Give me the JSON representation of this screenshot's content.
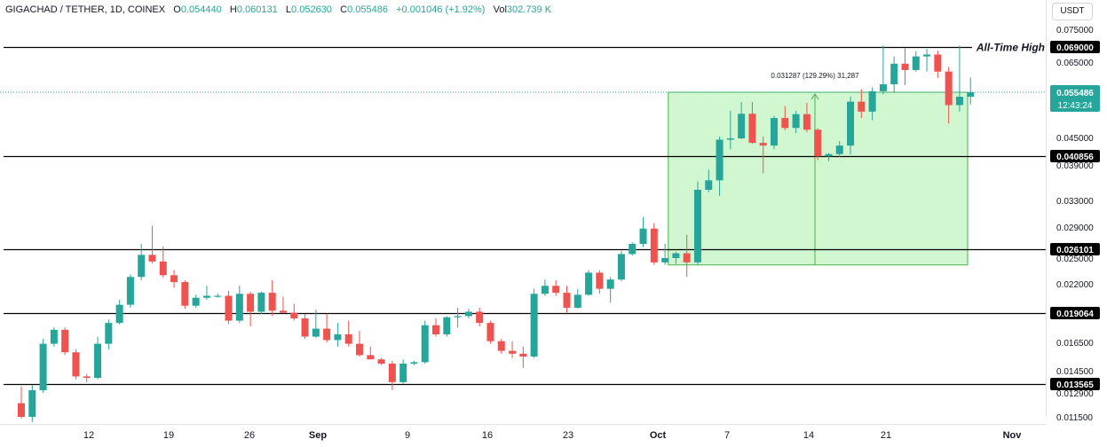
{
  "legend": {
    "symbol": "GIGACHAD / TETHER, 1D, COINEX",
    "open_label": "O",
    "open": "0.054440",
    "high_label": "H",
    "high": "0.060131",
    "low_label": "L",
    "low": "0.052630",
    "close_label": "C",
    "close": "0.055486",
    "change": "+0.001046 (+1.92%)",
    "volume_label": "Vol",
    "volume": "302.739 K"
  },
  "currency": "USDT",
  "colors": {
    "up": "#26a69a",
    "down": "#ef5350",
    "range_fill": "#b2f2b2",
    "range_line": "#4caf50",
    "price_tag": "#26a69a"
  },
  "chart_data": {
    "type": "candlestick",
    "x_ticks": [
      "12",
      "19",
      "26",
      "Sep",
      "9",
      "16",
      "23",
      "Oct",
      "7",
      "14",
      "21",
      "Nov"
    ],
    "y_ticks": [
      "0.075000",
      "0.065000",
      "0.045000",
      "0.039000",
      "0.033000",
      "0.029000",
      "0.025000",
      "0.022000",
      "0.016500",
      "0.014500",
      "0.012900",
      "0.011500"
    ],
    "levels": [
      {
        "value": 0.069,
        "label": "0.069000",
        "annotation": "All-Time High"
      },
      {
        "value": 0.040856,
        "label": "0.040856"
      },
      {
        "value": 0.026101,
        "label": "0.026101"
      },
      {
        "value": 0.019064,
        "label": "0.019064"
      },
      {
        "value": 0.013565,
        "label": "0.013565"
      }
    ],
    "current_price": {
      "label": "0.055486",
      "countdown": "12:43:24"
    },
    "measure": {
      "label": "0.031287 (129.29%) 31,287",
      "from": 0.024199,
      "to": 0.055486
    },
    "candles": [
      {
        "o": 0.0123,
        "h": 0.0134,
        "l": 0.0114,
        "c": 0.0115
      },
      {
        "o": 0.0115,
        "h": 0.0135,
        "l": 0.0112,
        "c": 0.0131
      },
      {
        "o": 0.0131,
        "h": 0.0168,
        "l": 0.0129,
        "c": 0.0164
      },
      {
        "o": 0.0164,
        "h": 0.0178,
        "l": 0.0162,
        "c": 0.0176
      },
      {
        "o": 0.0176,
        "h": 0.0178,
        "l": 0.0156,
        "c": 0.0158
      },
      {
        "o": 0.0158,
        "h": 0.016,
        "l": 0.0139,
        "c": 0.0141
      },
      {
        "o": 0.0141,
        "h": 0.0143,
        "l": 0.0137,
        "c": 0.014
      },
      {
        "o": 0.014,
        "h": 0.017,
        "l": 0.0139,
        "c": 0.0164
      },
      {
        "o": 0.0164,
        "h": 0.0185,
        "l": 0.016,
        "c": 0.0182
      },
      {
        "o": 0.0182,
        "h": 0.0204,
        "l": 0.0181,
        "c": 0.0199
      },
      {
        "o": 0.0199,
        "h": 0.0231,
        "l": 0.0196,
        "c": 0.0228
      },
      {
        "o": 0.0228,
        "h": 0.0268,
        "l": 0.0224,
        "c": 0.0254
      },
      {
        "o": 0.0254,
        "h": 0.0292,
        "l": 0.0244,
        "c": 0.0246
      },
      {
        "o": 0.0246,
        "h": 0.0265,
        "l": 0.0227,
        "c": 0.023
      },
      {
        "o": 0.023,
        "h": 0.0236,
        "l": 0.0216,
        "c": 0.0222
      },
      {
        "o": 0.0222,
        "h": 0.0224,
        "l": 0.0195,
        "c": 0.0198
      },
      {
        "o": 0.0198,
        "h": 0.0209,
        "l": 0.0196,
        "c": 0.0206
      },
      {
        "o": 0.0206,
        "h": 0.0218,
        "l": 0.0204,
        "c": 0.0208
      },
      {
        "o": 0.0208,
        "h": 0.021,
        "l": 0.0206,
        "c": 0.0208
      },
      {
        "o": 0.0208,
        "h": 0.0213,
        "l": 0.0181,
        "c": 0.0184
      },
      {
        "o": 0.0184,
        "h": 0.0218,
        "l": 0.0182,
        "c": 0.021
      },
      {
        "o": 0.021,
        "h": 0.0212,
        "l": 0.0179,
        "c": 0.0192
      },
      {
        "o": 0.0192,
        "h": 0.0212,
        "l": 0.019,
        "c": 0.0211
      },
      {
        "o": 0.0211,
        "h": 0.0224,
        "l": 0.0188,
        "c": 0.0193
      },
      {
        "o": 0.0193,
        "h": 0.0207,
        "l": 0.0191,
        "c": 0.0191
      },
      {
        "o": 0.0191,
        "h": 0.02,
        "l": 0.0184,
        "c": 0.0186
      },
      {
        "o": 0.0186,
        "h": 0.019,
        "l": 0.0168,
        "c": 0.017
      },
      {
        "o": 0.017,
        "h": 0.0194,
        "l": 0.0169,
        "c": 0.0177
      },
      {
        "o": 0.0177,
        "h": 0.019,
        "l": 0.0165,
        "c": 0.0167
      },
      {
        "o": 0.0167,
        "h": 0.0182,
        "l": 0.0162,
        "c": 0.0172
      },
      {
        "o": 0.0172,
        "h": 0.0184,
        "l": 0.0162,
        "c": 0.0164
      },
      {
        "o": 0.0164,
        "h": 0.0175,
        "l": 0.0155,
        "c": 0.0156
      },
      {
        "o": 0.0156,
        "h": 0.0162,
        "l": 0.0153,
        "c": 0.0153
      },
      {
        "o": 0.0153,
        "h": 0.0154,
        "l": 0.0149,
        "c": 0.015
      },
      {
        "o": 0.015,
        "h": 0.0152,
        "l": 0.0131,
        "c": 0.0137
      },
      {
        "o": 0.0137,
        "h": 0.0153,
        "l": 0.0136,
        "c": 0.015
      },
      {
        "o": 0.015,
        "h": 0.0152,
        "l": 0.0149,
        "c": 0.0151
      },
      {
        "o": 0.0151,
        "h": 0.0184,
        "l": 0.015,
        "c": 0.018
      },
      {
        "o": 0.018,
        "h": 0.0186,
        "l": 0.017,
        "c": 0.0172
      },
      {
        "o": 0.0172,
        "h": 0.0188,
        "l": 0.017,
        "c": 0.0187
      },
      {
        "o": 0.0187,
        "h": 0.0196,
        "l": 0.0178,
        "c": 0.0188
      },
      {
        "o": 0.0188,
        "h": 0.0195,
        "l": 0.0186,
        "c": 0.0192
      },
      {
        "o": 0.0192,
        "h": 0.0196,
        "l": 0.0179,
        "c": 0.0182
      },
      {
        "o": 0.0182,
        "h": 0.0184,
        "l": 0.0164,
        "c": 0.0166
      },
      {
        "o": 0.0166,
        "h": 0.0168,
        "l": 0.0157,
        "c": 0.0159
      },
      {
        "o": 0.0159,
        "h": 0.0166,
        "l": 0.0154,
        "c": 0.0157
      },
      {
        "o": 0.0157,
        "h": 0.0162,
        "l": 0.0147,
        "c": 0.0155
      },
      {
        "o": 0.0155,
        "h": 0.0215,
        "l": 0.0154,
        "c": 0.021
      },
      {
        "o": 0.021,
        "h": 0.0225,
        "l": 0.0208,
        "c": 0.0218
      },
      {
        "o": 0.0218,
        "h": 0.0224,
        "l": 0.0208,
        "c": 0.0211
      },
      {
        "o": 0.0211,
        "h": 0.0218,
        "l": 0.0191,
        "c": 0.0196
      },
      {
        "o": 0.0196,
        "h": 0.0215,
        "l": 0.0195,
        "c": 0.0209
      },
      {
        "o": 0.0209,
        "h": 0.0236,
        "l": 0.0208,
        "c": 0.0233
      },
      {
        "o": 0.0233,
        "h": 0.0236,
        "l": 0.021,
        "c": 0.0215
      },
      {
        "o": 0.0215,
        "h": 0.0228,
        "l": 0.0201,
        "c": 0.0225
      },
      {
        "o": 0.0225,
        "h": 0.0259,
        "l": 0.0223,
        "c": 0.0255
      },
      {
        "o": 0.0255,
        "h": 0.027,
        "l": 0.0253,
        "c": 0.0268
      },
      {
        "o": 0.0268,
        "h": 0.0305,
        "l": 0.0264,
        "c": 0.0288
      },
      {
        "o": 0.0288,
        "h": 0.0296,
        "l": 0.0242,
        "c": 0.0245
      },
      {
        "o": 0.0245,
        "h": 0.0268,
        "l": 0.0242,
        "c": 0.025
      },
      {
        "o": 0.025,
        "h": 0.0258,
        "l": 0.0243,
        "c": 0.0256
      },
      {
        "o": 0.0256,
        "h": 0.028,
        "l": 0.0228,
        "c": 0.0245
      },
      {
        "o": 0.0245,
        "h": 0.0362,
        "l": 0.0242,
        "c": 0.0348
      },
      {
        "o": 0.0348,
        "h": 0.0382,
        "l": 0.0344,
        "c": 0.0364
      },
      {
        "o": 0.0364,
        "h": 0.0452,
        "l": 0.0338,
        "c": 0.0445
      },
      {
        "o": 0.0445,
        "h": 0.0512,
        "l": 0.0424,
        "c": 0.0448
      },
      {
        "o": 0.0448,
        "h": 0.0532,
        "l": 0.0446,
        "c": 0.0505
      },
      {
        "o": 0.0505,
        "h": 0.0532,
        "l": 0.0436,
        "c": 0.0438
      },
      {
        "o": 0.0438,
        "h": 0.0452,
        "l": 0.0376,
        "c": 0.0432
      },
      {
        "o": 0.0432,
        "h": 0.05,
        "l": 0.0424,
        "c": 0.0495
      },
      {
        "o": 0.0495,
        "h": 0.0523,
        "l": 0.0467,
        "c": 0.0472
      },
      {
        "o": 0.0472,
        "h": 0.0512,
        "l": 0.046,
        "c": 0.0504
      },
      {
        "o": 0.0504,
        "h": 0.053,
        "l": 0.0462,
        "c": 0.0468
      },
      {
        "o": 0.0468,
        "h": 0.0472,
        "l": 0.04,
        "c": 0.0408
      },
      {
        "o": 0.0408,
        "h": 0.0415,
        "l": 0.0398,
        "c": 0.0413
      },
      {
        "o": 0.0413,
        "h": 0.0442,
        "l": 0.0407,
        "c": 0.0432
      },
      {
        "o": 0.0432,
        "h": 0.0545,
        "l": 0.0412,
        "c": 0.0533
      },
      {
        "o": 0.0533,
        "h": 0.0565,
        "l": 0.0495,
        "c": 0.051
      },
      {
        "o": 0.051,
        "h": 0.057,
        "l": 0.049,
        "c": 0.0558
      },
      {
        "o": 0.0558,
        "h": 0.0695,
        "l": 0.055,
        "c": 0.058
      },
      {
        "o": 0.058,
        "h": 0.0665,
        "l": 0.0555,
        "c": 0.0645
      },
      {
        "o": 0.0645,
        "h": 0.0687,
        "l": 0.0577,
        "c": 0.0625
      },
      {
        "o": 0.0625,
        "h": 0.0679,
        "l": 0.062,
        "c": 0.0665
      },
      {
        "o": 0.0665,
        "h": 0.0685,
        "l": 0.062,
        "c": 0.067
      },
      {
        "o": 0.067,
        "h": 0.068,
        "l": 0.06,
        "c": 0.062
      },
      {
        "o": 0.062,
        "h": 0.0635,
        "l": 0.0482,
        "c": 0.0525
      },
      {
        "o": 0.0525,
        "h": 0.0695,
        "l": 0.051,
        "c": 0.05444
      },
      {
        "o": 0.05444,
        "h": 0.06013,
        "l": 0.05263,
        "c": 0.05549
      }
    ]
  }
}
